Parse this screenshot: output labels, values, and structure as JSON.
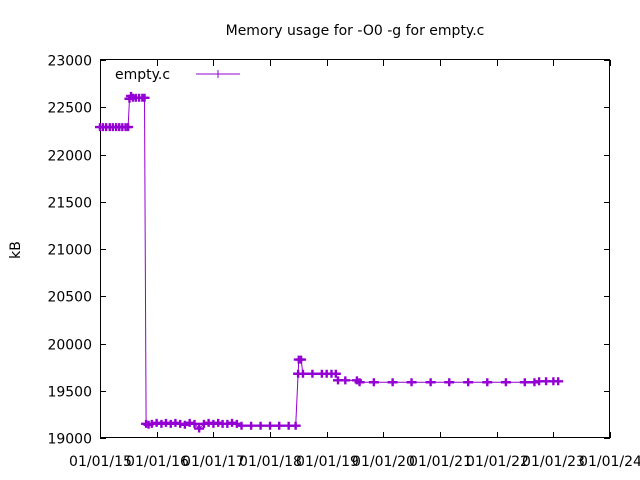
{
  "chart_data": {
    "type": "line",
    "title": "Memory usage for -O0 -g for empty.c",
    "xlabel": "",
    "ylabel": "kB",
    "ylim": [
      19000,
      23000
    ],
    "yticks": [
      "19000",
      "19500",
      "20000",
      "20500",
      "21000",
      "21500",
      "22000",
      "22500",
      "23000"
    ],
    "xlim": [
      "2015-01-01",
      "2024-01-01"
    ],
    "xticks": [
      "01/01/15",
      "01/01/16",
      "01/01/17",
      "01/01/18",
      "01/01/19",
      "01/01/20",
      "01/01/21",
      "01/01/22",
      "01/01/23",
      "01/01/24"
    ],
    "legend_position": "top-left",
    "grid": false,
    "series": [
      {
        "name": "empty.c",
        "color": "#9400d3",
        "marker": "plus",
        "points": [
          [
            "2015-01-01",
            22290
          ],
          [
            "2015-01-20",
            22290
          ],
          [
            "2015-02-10",
            22290
          ],
          [
            "2015-03-05",
            22290
          ],
          [
            "2015-03-25",
            22290
          ],
          [
            "2015-04-15",
            22290
          ],
          [
            "2015-05-05",
            22290
          ],
          [
            "2015-05-25",
            22290
          ],
          [
            "2015-06-15",
            22290
          ],
          [
            "2015-07-01",
            22290
          ],
          [
            "2015-07-10",
            22590
          ],
          [
            "2015-07-20",
            22620
          ],
          [
            "2015-08-01",
            22600
          ],
          [
            "2015-08-20",
            22600
          ],
          [
            "2015-09-10",
            22600
          ],
          [
            "2015-10-01",
            22600
          ],
          [
            "2015-10-15",
            22600
          ],
          [
            "2015-10-25",
            19150
          ],
          [
            "2015-11-10",
            19140
          ],
          [
            "2015-12-01",
            19150
          ],
          [
            "2016-01-01",
            19160
          ],
          [
            "2016-02-01",
            19150
          ],
          [
            "2016-03-01",
            19160
          ],
          [
            "2016-04-01",
            19150
          ],
          [
            "2016-05-01",
            19160
          ],
          [
            "2016-06-01",
            19150
          ],
          [
            "2016-07-01",
            19140
          ],
          [
            "2016-08-01",
            19160
          ],
          [
            "2016-09-01",
            19150
          ],
          [
            "2016-10-01",
            19100
          ],
          [
            "2016-11-01",
            19150
          ],
          [
            "2016-12-01",
            19160
          ],
          [
            "2017-01-01",
            19150
          ],
          [
            "2017-02-01",
            19160
          ],
          [
            "2017-03-01",
            19150
          ],
          [
            "2017-04-01",
            19150
          ],
          [
            "2017-05-01",
            19160
          ],
          [
            "2017-06-01",
            19150
          ],
          [
            "2017-07-01",
            19130
          ],
          [
            "2017-09-01",
            19130
          ],
          [
            "2017-11-01",
            19130
          ],
          [
            "2018-01-01",
            19130
          ],
          [
            "2018-03-01",
            19130
          ],
          [
            "2018-05-01",
            19130
          ],
          [
            "2018-06-15",
            19130
          ],
          [
            "2018-07-01",
            19680
          ],
          [
            "2018-07-05",
            19830
          ],
          [
            "2018-07-20",
            19830
          ],
          [
            "2018-08-01",
            19680
          ],
          [
            "2018-10-01",
            19680
          ],
          [
            "2018-12-01",
            19680
          ],
          [
            "2019-01-01",
            19680
          ],
          [
            "2019-02-01",
            19680
          ],
          [
            "2019-03-01",
            19680
          ],
          [
            "2019-03-15",
            19610
          ],
          [
            "2019-05-01",
            19610
          ],
          [
            "2019-07-15",
            19610
          ],
          [
            "2019-08-01",
            19590
          ],
          [
            "2019-11-01",
            19590
          ],
          [
            "2020-03-01",
            19590
          ],
          [
            "2020-07-01",
            19590
          ],
          [
            "2020-11-01",
            19590
          ],
          [
            "2021-03-01",
            19590
          ],
          [
            "2021-07-01",
            19590
          ],
          [
            "2021-11-01",
            19590
          ],
          [
            "2022-03-01",
            19590
          ],
          [
            "2022-07-01",
            19590
          ],
          [
            "2022-09-01",
            19590
          ],
          [
            "2022-10-01",
            19600
          ],
          [
            "2022-11-15",
            19600
          ],
          [
            "2023-01-01",
            19600
          ],
          [
            "2023-02-01",
            19600
          ]
        ]
      }
    ]
  }
}
